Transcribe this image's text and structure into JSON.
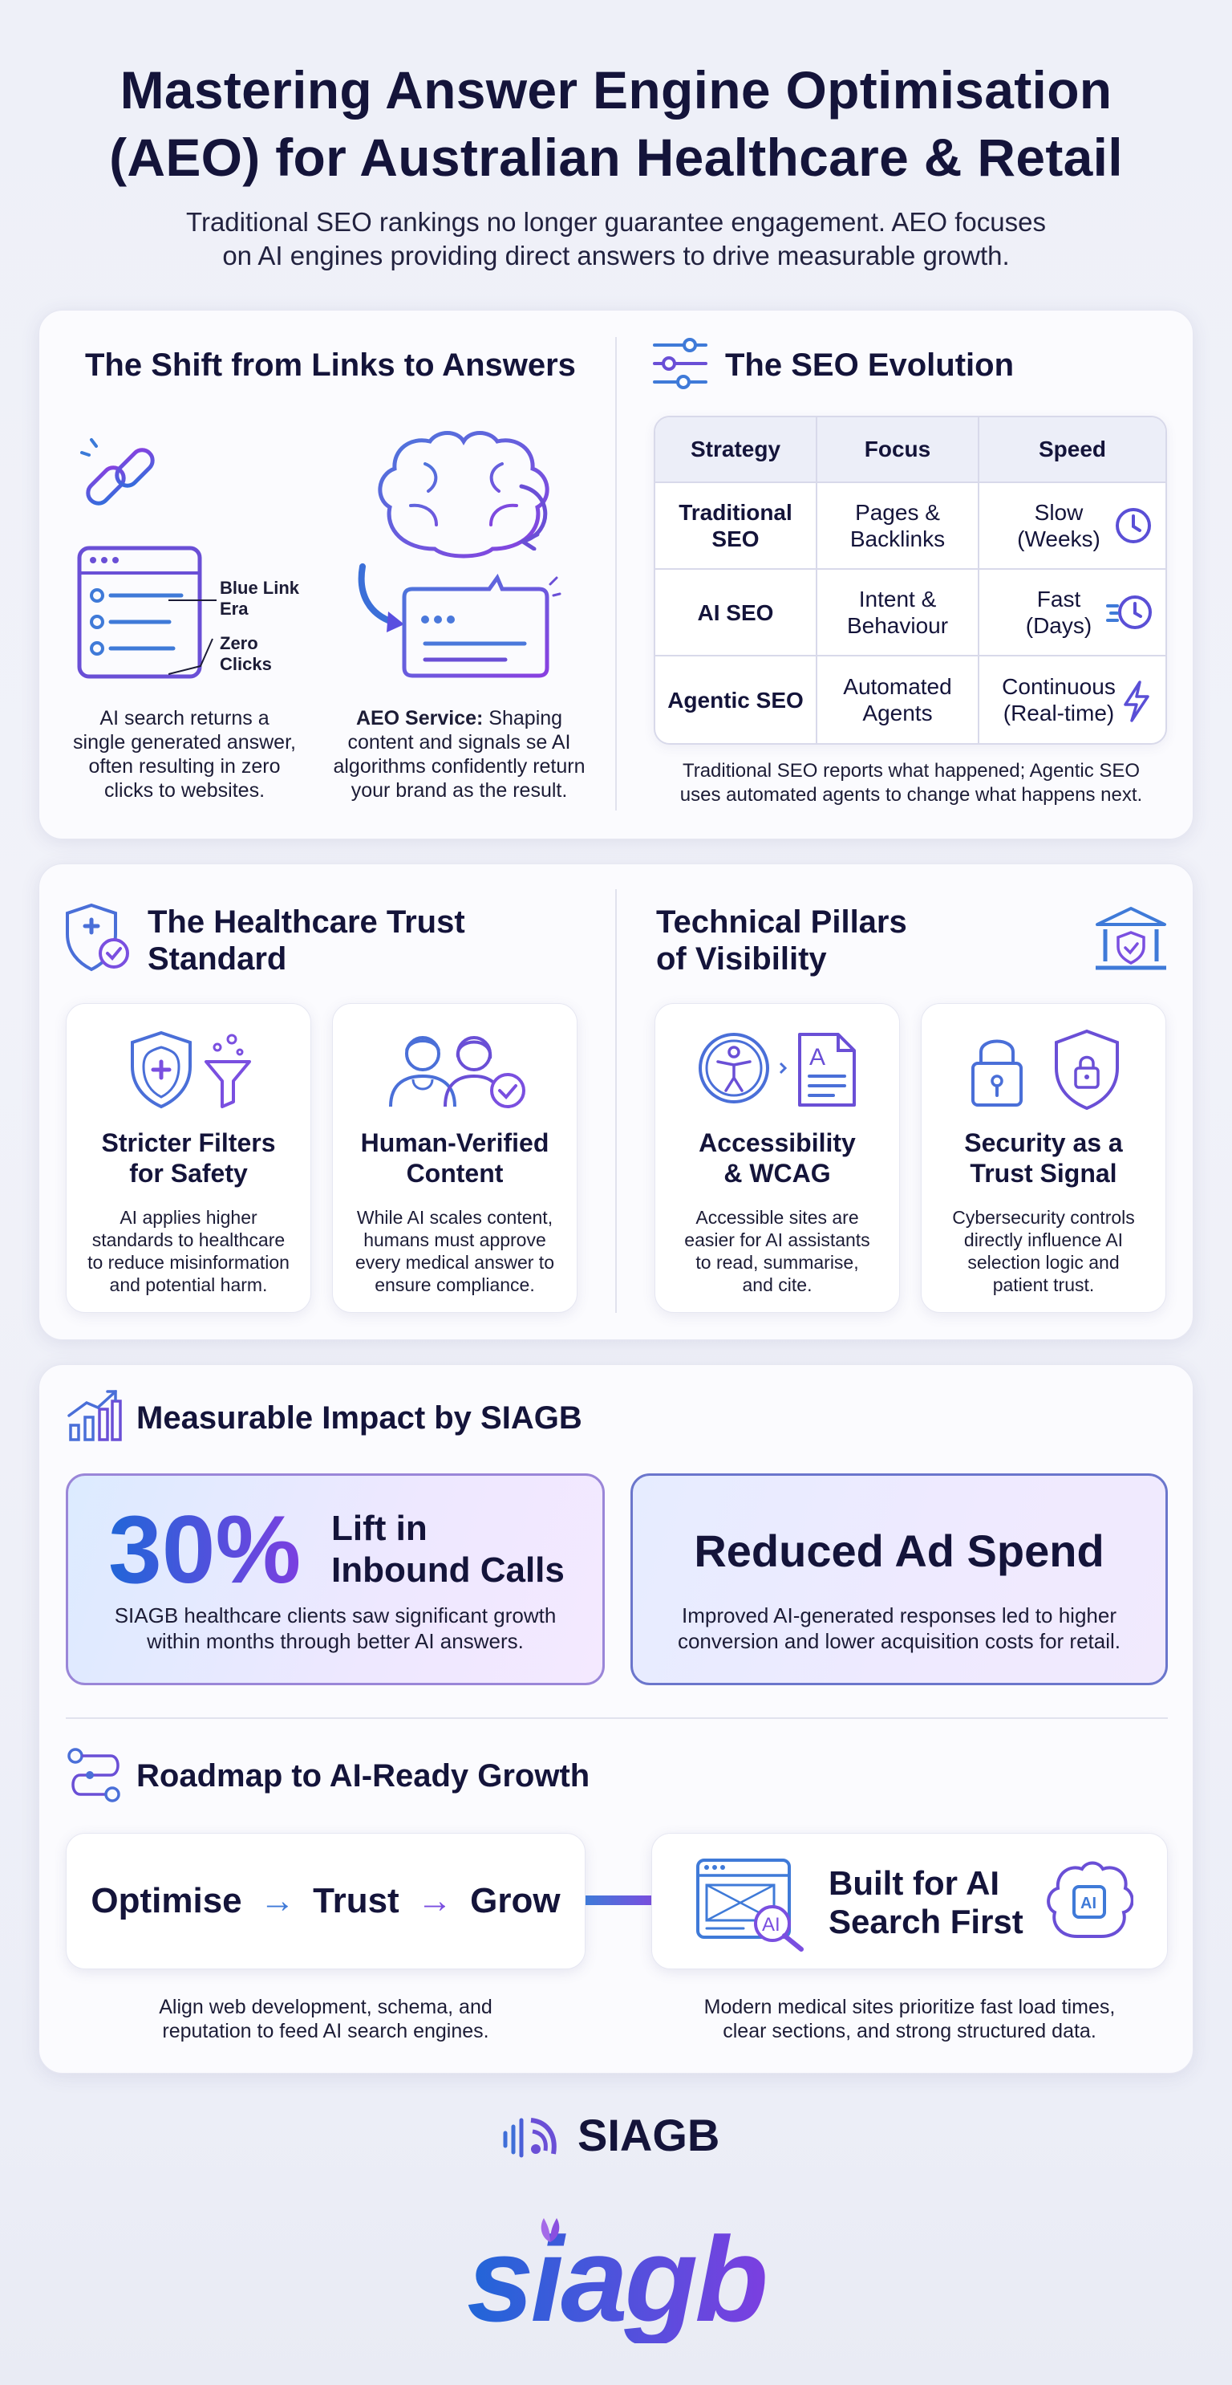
{
  "header": {
    "title_line1": "Mastering Answer Engine Optimisation",
    "title_line2": "(AEO) for Australian Healthcare & Retail",
    "subtitle_line1": "Traditional SEO rankings no longer guarantee engagement. AEO focuses",
    "subtitle_line2": "on AI engines providing direct answers to drive measurable growth."
  },
  "shift": {
    "title": "The Shift from Links to Answers",
    "label_blue_link_1": "Blue Link",
    "label_blue_link_2": "Era",
    "label_zero_1": "Zero",
    "label_zero_2": "Clicks",
    "left_text": [
      "AI search returns a",
      "single generated answer,",
      "often resulting in zero",
      "clicks to websites."
    ],
    "right_bold": "AEO Service:",
    "right_text": [
      " Shaping",
      "content and signals se AI",
      "algorithms confidently return",
      "your brand as the result."
    ]
  },
  "evolution": {
    "title": "The SEO Evolution",
    "headers": [
      "Strategy",
      "Focus",
      "Speed"
    ],
    "rows": [
      {
        "strategy": [
          "Traditional",
          "SEO"
        ],
        "focus": [
          "Pages &",
          "Backlinks"
        ],
        "speed": [
          "Slow",
          "(Weeks)"
        ],
        "icon": "clock-icon"
      },
      {
        "strategy": [
          "AI SEO"
        ],
        "focus": [
          "Intent &",
          "Behaviour"
        ],
        "speed": [
          "Fast",
          "(Days)"
        ],
        "icon": "fast-clock-icon"
      },
      {
        "strategy": [
          "Agentic SEO"
        ],
        "focus": [
          "Automated",
          "Agents"
        ],
        "speed": [
          "Continuous",
          "(Real-time)"
        ],
        "icon": "lightning-icon"
      }
    ],
    "footer_line1": "Traditional SEO reports what happened; Agentic SEO",
    "footer_line2": "uses automated agents to change what happens next."
  },
  "healthcare": {
    "title_line1": "The Healthcare Trust",
    "title_line2": "Standard",
    "cards": [
      {
        "title": [
          "Stricter Filters",
          "for Safety"
        ],
        "desc": [
          "AI applies higher",
          "standards to healthcare",
          "to reduce misinformation",
          "and potential harm."
        ]
      },
      {
        "title": [
          "Human-Verified",
          "Content"
        ],
        "desc": [
          "While AI scales content,",
          "humans must approve",
          "every medical answer to",
          "ensure compliance."
        ]
      }
    ]
  },
  "pillars": {
    "title_line1": "Technical Pillars",
    "title_line2": "of Visibility",
    "cards": [
      {
        "title": [
          "Accessibility",
          "& WCAG"
        ],
        "desc": [
          "Accessible sites are",
          "easier for AI assistants",
          "to read, summarise,",
          "and cite."
        ]
      },
      {
        "title": [
          "Security as a",
          "Trust Signal"
        ],
        "desc": [
          "Cybersecurity controls",
          "directly influence AI",
          "selection logic and",
          "patient trust."
        ]
      }
    ]
  },
  "impact": {
    "title": "Measurable Impact by SIAGB",
    "stat": "30%",
    "stat_label_1": "Lift in",
    "stat_label_2": "Inbound Calls",
    "left_desc_1": "SIAGB healthcare clients saw significant growth",
    "left_desc_2": "within months through better AI answers.",
    "right_title": "Reduced Ad Spend",
    "right_desc_1": "Improved AI-generated responses led to higher",
    "right_desc_2": "conversion and lower acquisition costs for retail."
  },
  "roadmap": {
    "title": "Roadmap to AI-Ready Growth",
    "steps": [
      "Optimise",
      "Trust",
      "Grow"
    ],
    "built_1": "Built for AI",
    "built_2": "Search First",
    "ai_badge": "AI",
    "left_desc_1": "Align web development, schema, and",
    "left_desc_2": "reputation to feed AI search engines.",
    "right_desc_1": "Modern medical sites prioritize fast load times,",
    "right_desc_2": "clear sections, and strong structured data."
  },
  "footer": {
    "brand_small": "SIAGB",
    "brand_large": "siagb"
  },
  "colors": {
    "navy": "#14143a",
    "accent_blue": "#2166d8",
    "accent_purple": "#7b3fe0"
  }
}
